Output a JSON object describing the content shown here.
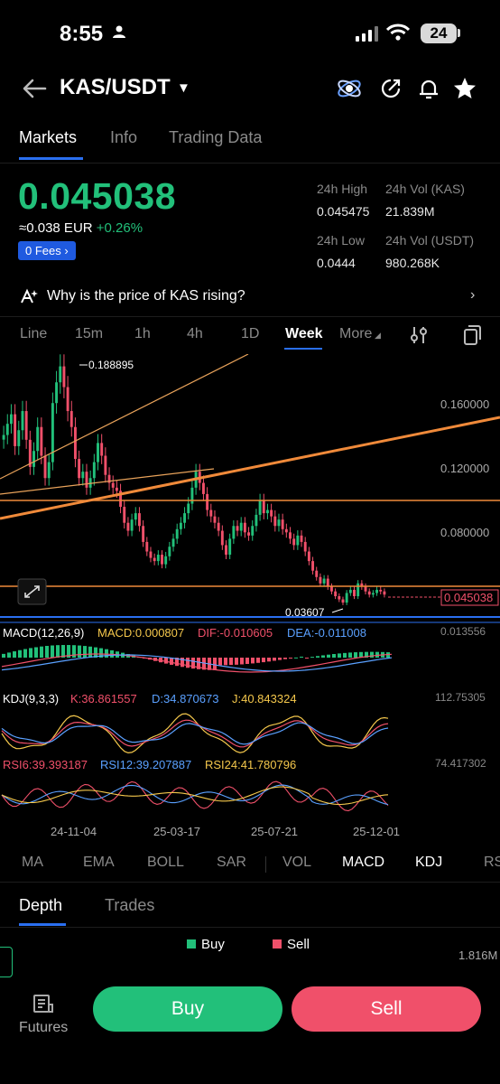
{
  "status_bar": {
    "time": "8:55",
    "battery": "24"
  },
  "header": {
    "pair": "KAS/USDT"
  },
  "tabs": [
    {
      "label": "Markets",
      "active": true
    },
    {
      "label": "Info",
      "active": false
    },
    {
      "label": "Trading Data",
      "active": false
    }
  ],
  "ticker": {
    "last_price": "0.045038",
    "fiat_price": "≈0.038 EUR",
    "change": "+0.26%",
    "fees_label": "0 Fees",
    "high_label": "24h High",
    "high_value": "0.045475",
    "vol_kas_label": "24h Vol (KAS)",
    "vol_kas_value": "21.839M",
    "low_label": "24h Low",
    "low_value": "0.0444",
    "vol_usdt_label": "24h Vol  (USDT)",
    "vol_usdt_value": "980.268K"
  },
  "why_bar": {
    "text": "Why is the price of KAS rising?"
  },
  "intervals": [
    {
      "label": "Line",
      "active": false
    },
    {
      "label": "15m",
      "active": false
    },
    {
      "label": "1h",
      "active": false
    },
    {
      "label": "4h",
      "active": false
    },
    {
      "label": "1D",
      "active": false
    },
    {
      "label": "Week",
      "active": true
    },
    {
      "label": "More",
      "active": false
    }
  ],
  "chart": {
    "price_axis": [
      "0.160000",
      "0.120000",
      "0.080000"
    ],
    "high_marker": "0.188895",
    "low_marker": "0.03607",
    "current_price_tag": "0.045038",
    "macd_label": "MACD(12,26,9)",
    "macd_value": "MACD:0.000807",
    "macd_dif": "DIF:-0.010605",
    "macd_dea": "DEA:-0.011008",
    "macd_scale": "0.013556",
    "kdj_label": "KDJ(9,3,3)",
    "kdj_k": "K:36.861557",
    "kdj_d": "D:34.870673",
    "kdj_j": "J:40.843324",
    "kdj_scale": "112.75305",
    "rsi6": "RSI6:39.393187",
    "rsi12": "RSI12:39.207887",
    "rsi24": "RSI24:41.780796",
    "rsi_scale": "74.417302",
    "dates": [
      "24-11-04",
      "25-03-17",
      "25-07-21",
      "25-12-01"
    ],
    "colors": {
      "up": "#22c07a",
      "down": "#f0506a",
      "trend": "#f08a3a",
      "blue": "#2a6ff0"
    }
  },
  "chart_data": {
    "type": "candlestick",
    "x": [
      "24-11-04",
      "25-03-17",
      "25-07-21",
      "25-12-01"
    ],
    "ylim": [
      0.036,
      0.19
    ],
    "y_ticks": [
      0.16,
      0.12,
      0.08
    ],
    "high": 0.188895,
    "low": 0.03607,
    "last": 0.045038
  },
  "indicators": [
    {
      "label": "MA",
      "active": false
    },
    {
      "label": "EMA",
      "active": false
    },
    {
      "label": "BOLL",
      "active": false
    },
    {
      "label": "SAR",
      "active": false
    },
    {
      "label": "VOL",
      "active": false
    },
    {
      "label": "MACD",
      "active": true
    },
    {
      "label": "KDJ",
      "active": true
    },
    {
      "label": "RS",
      "active": false
    }
  ],
  "depth": {
    "tabs": [
      {
        "label": "Depth",
        "active": true
      },
      {
        "label": "Trades",
        "active": false
      }
    ],
    "buy_label": "Buy",
    "sell_label": "Sell",
    "max_volume": "1.816M"
  },
  "bottom_bar": {
    "futures_label": "Futures",
    "buy_button": "Buy",
    "sell_button": "Sell"
  }
}
